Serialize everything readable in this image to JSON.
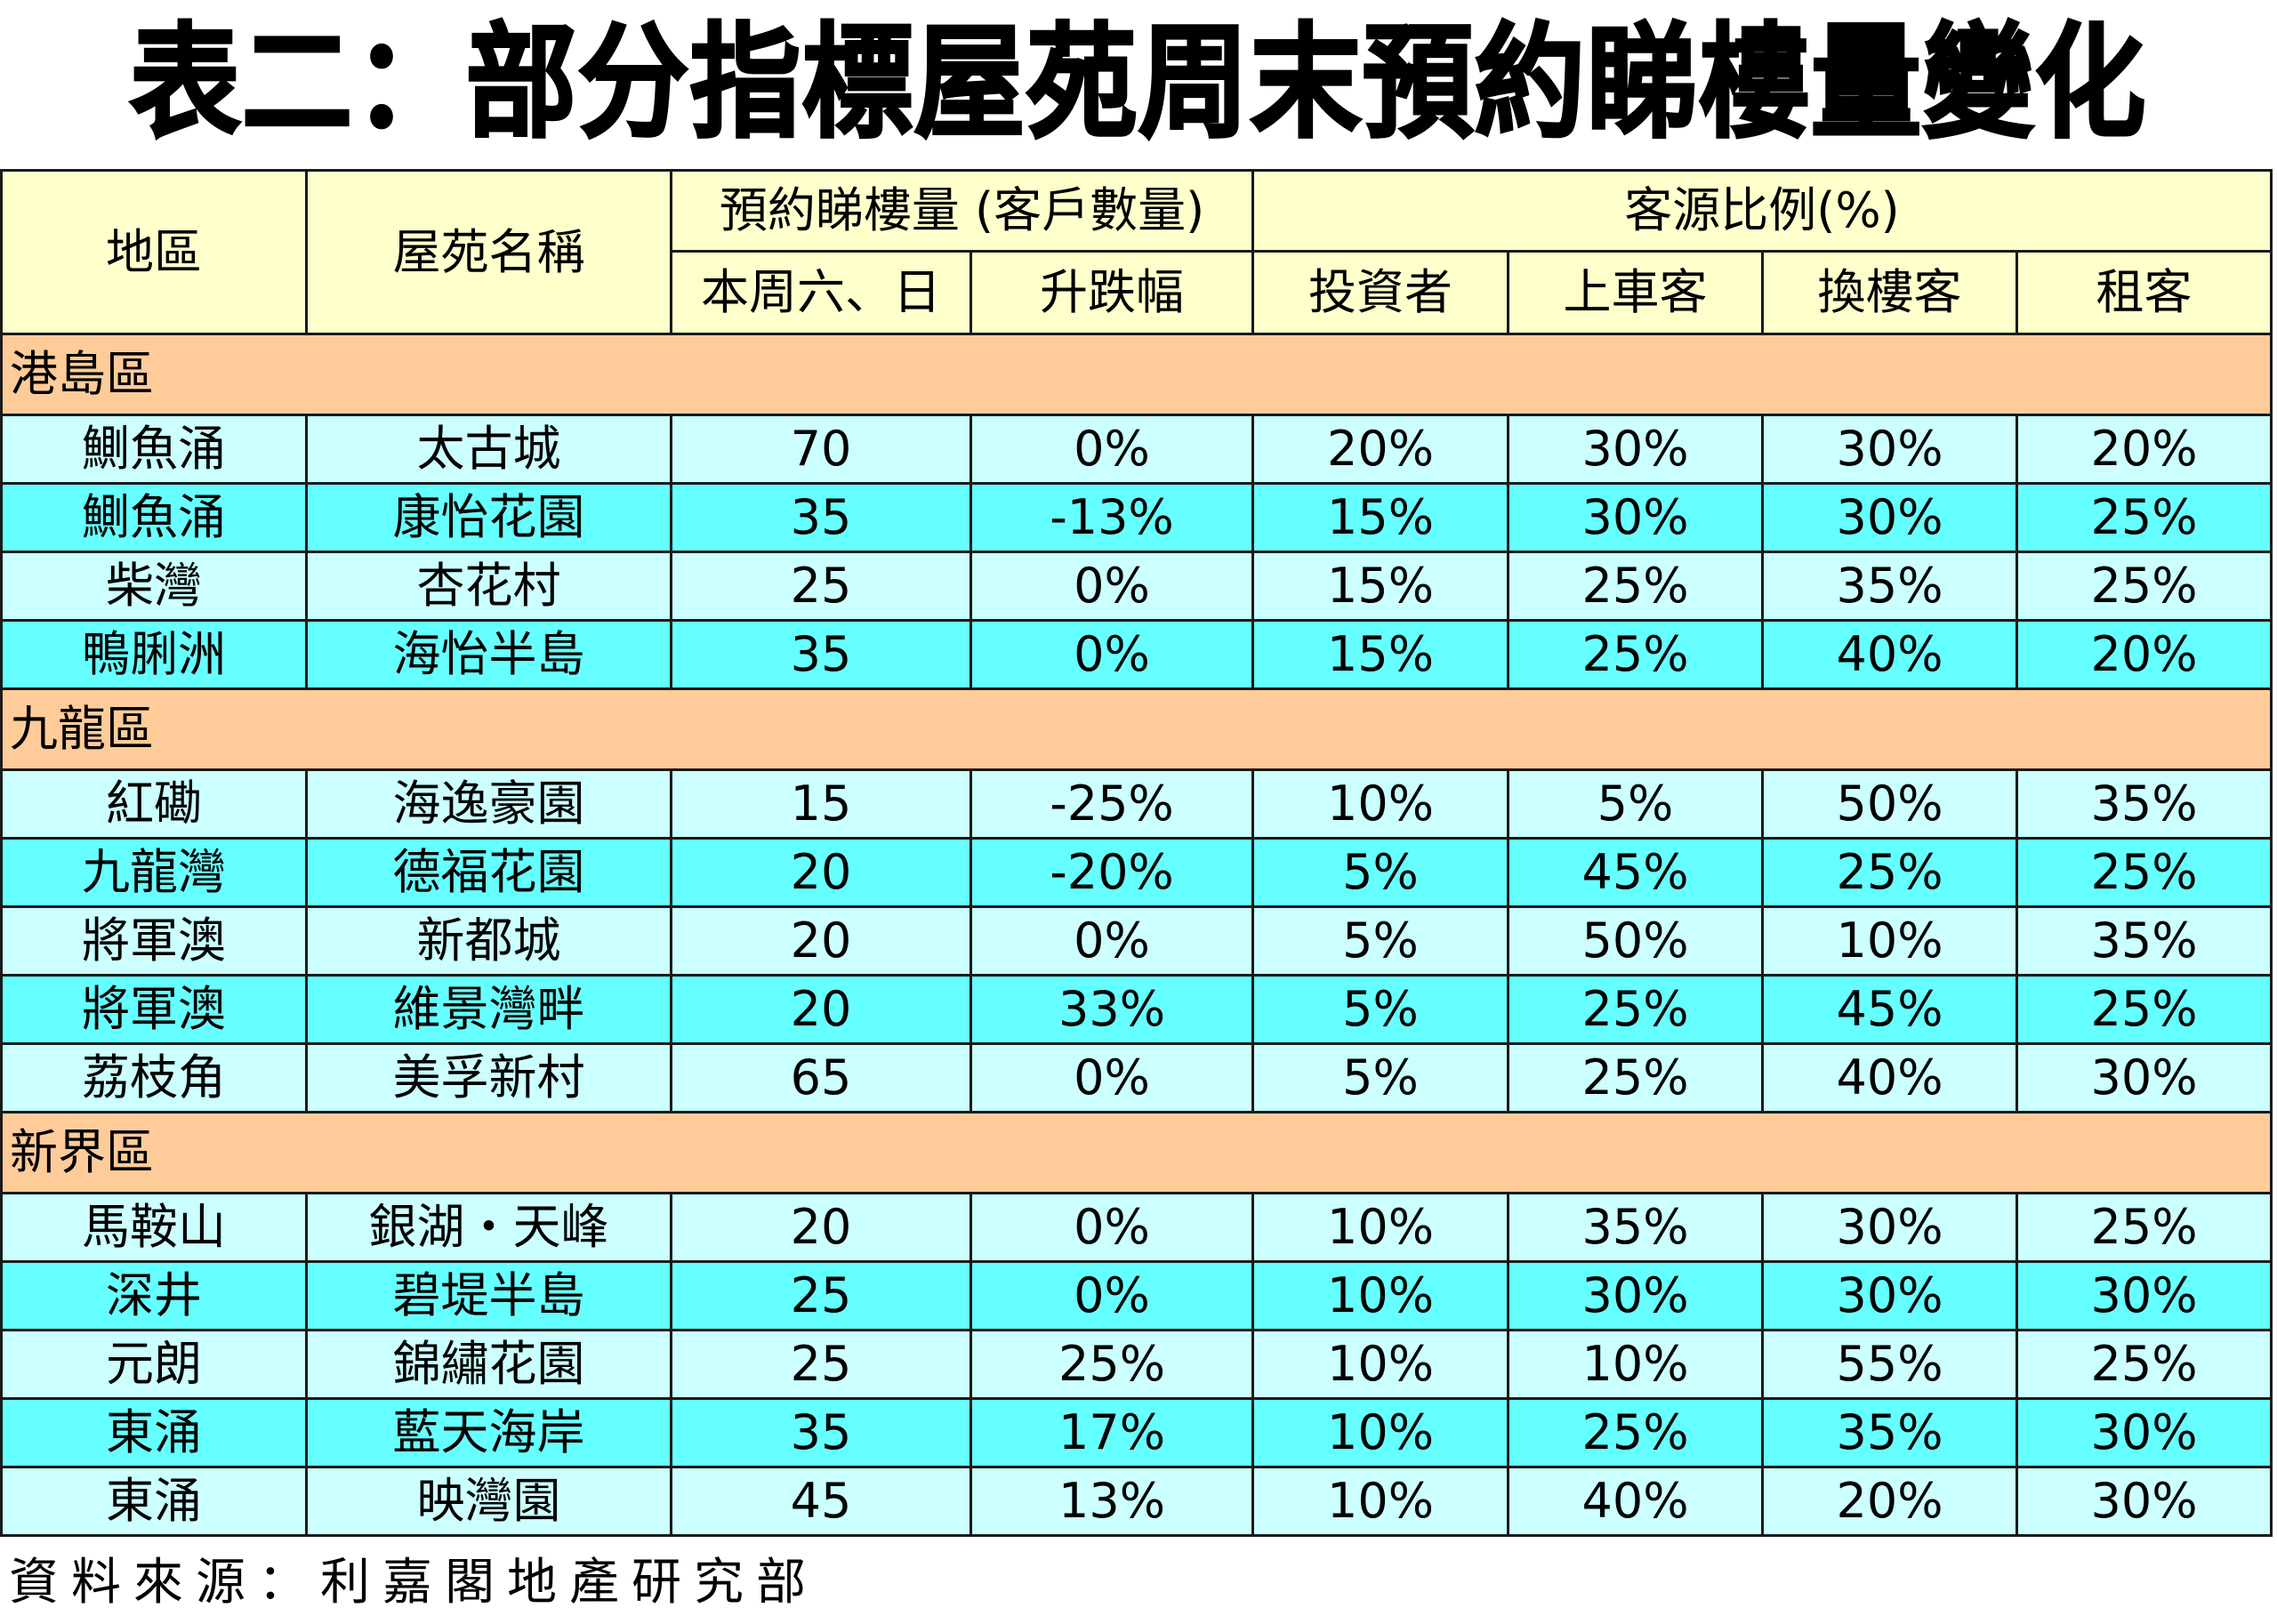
{
  "title": "表二：部分指標屋苑周末預約睇樓量變化",
  "header": {
    "district": "地區",
    "estate": "屋苑名稱",
    "group_viewing": "預約睇樓量 (客戶數量)",
    "group_source": "客源比例(%)",
    "weekend": "本周六、日",
    "change": "升跌幅",
    "investor": "投資者",
    "first_buyer": "上車客",
    "upgrader": "換樓客",
    "tenant": "租客"
  },
  "colors": {
    "header_bg": "#FFFFCC",
    "region_bg": "#FFCC99",
    "row_light": "#CCFFFF",
    "row_dark": "#66FFFF"
  },
  "regions": [
    {
      "name": "港島區",
      "rows": [
        {
          "district": "鰂魚涌",
          "estate": "太古城",
          "weekend": "70",
          "change": "0%",
          "investor": "20%",
          "first_buyer": "30%",
          "upgrader": "30%",
          "tenant": "20%"
        },
        {
          "district": "鰂魚涌",
          "estate": "康怡花園",
          "weekend": "35",
          "change": "-13%",
          "investor": "15%",
          "first_buyer": "30%",
          "upgrader": "30%",
          "tenant": "25%"
        },
        {
          "district": "柴灣",
          "estate": "杏花村",
          "weekend": "25",
          "change": "0%",
          "investor": "15%",
          "first_buyer": "25%",
          "upgrader": "35%",
          "tenant": "25%"
        },
        {
          "district": "鴨脷洲",
          "estate": "海怡半島",
          "weekend": "35",
          "change": "0%",
          "investor": "15%",
          "first_buyer": "25%",
          "upgrader": "40%",
          "tenant": "20%"
        }
      ]
    },
    {
      "name": "九龍區",
      "rows": [
        {
          "district": "紅磡",
          "estate": "海逸豪園",
          "weekend": "15",
          "change": "-25%",
          "investor": "10%",
          "first_buyer": "5%",
          "upgrader": "50%",
          "tenant": "35%"
        },
        {
          "district": "九龍灣",
          "estate": "德福花園",
          "weekend": "20",
          "change": "-20%",
          "investor": "5%",
          "first_buyer": "45%",
          "upgrader": "25%",
          "tenant": "25%"
        },
        {
          "district": "將軍澳",
          "estate": "新都城",
          "weekend": "20",
          "change": "0%",
          "investor": "5%",
          "first_buyer": "50%",
          "upgrader": "10%",
          "tenant": "35%"
        },
        {
          "district": "將軍澳",
          "estate": "維景灣畔",
          "weekend": "20",
          "change": "33%",
          "investor": "5%",
          "first_buyer": "25%",
          "upgrader": "45%",
          "tenant": "25%"
        },
        {
          "district": "荔枝角",
          "estate": "美孚新村",
          "weekend": "65",
          "change": "0%",
          "investor": "5%",
          "first_buyer": "25%",
          "upgrader": "40%",
          "tenant": "30%"
        }
      ]
    },
    {
      "name": "新界區",
      "rows": [
        {
          "district": "馬鞍山",
          "estate": "銀湖・天峰",
          "weekend": "20",
          "change": "0%",
          "investor": "10%",
          "first_buyer": "35%",
          "upgrader": "30%",
          "tenant": "25%"
        },
        {
          "district": "深井",
          "estate": "碧堤半島",
          "weekend": "25",
          "change": "0%",
          "investor": "10%",
          "first_buyer": "30%",
          "upgrader": "30%",
          "tenant": "30%"
        },
        {
          "district": "元朗",
          "estate": "錦繡花園",
          "weekend": "25",
          "change": "25%",
          "investor": "10%",
          "first_buyer": "10%",
          "upgrader": "55%",
          "tenant": "25%"
        },
        {
          "district": "東涌",
          "estate": "藍天海岸",
          "weekend": "35",
          "change": "17%",
          "investor": "10%",
          "first_buyer": "25%",
          "upgrader": "35%",
          "tenant": "30%"
        },
        {
          "district": "東涌",
          "estate": "映灣園",
          "weekend": "45",
          "change": "13%",
          "investor": "10%",
          "first_buyer": "40%",
          "upgrader": "20%",
          "tenant": "30%"
        }
      ]
    }
  ],
  "source": "資料來源：利嘉閣地產研究部"
}
